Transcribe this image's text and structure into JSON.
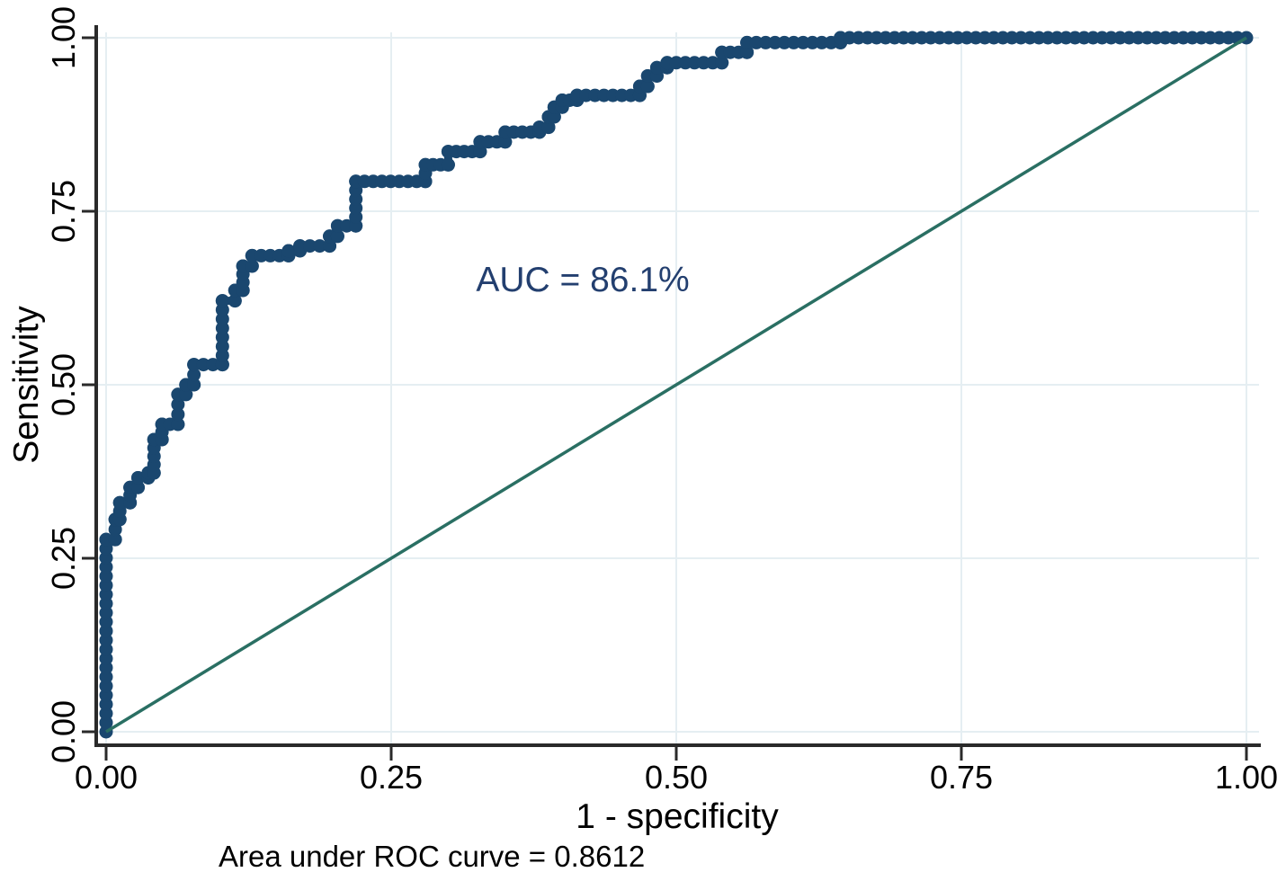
{
  "figure": {
    "kind": "ROC curve plot",
    "background_color": "#ffffff"
  },
  "chart_data": {
    "type": "line",
    "title": "",
    "xlabel": "1 - specificity",
    "ylabel": "Sensitivity",
    "xlim": [
      0,
      1
    ],
    "ylim": [
      0,
      1
    ],
    "x_ticks": [
      0,
      0.25,
      0.5,
      0.75,
      1
    ],
    "y_ticks": [
      0,
      0.25,
      0.5,
      0.75,
      1
    ],
    "x_tick_labels": [
      "0.00",
      "0.25",
      "0.50",
      "0.75",
      "1.00"
    ],
    "y_tick_labels": [
      "0.00",
      "0.25",
      "0.50",
      "0.75",
      "1.00"
    ],
    "grid": true,
    "grid_color": "#e5eef2",
    "axis_color": "#2a2a2a",
    "legend_position": "none",
    "annotation": {
      "text": "AUC = 86.1%",
      "x": 0.418,
      "y": 0.65,
      "color": "#233f6f"
    },
    "note": "Area under ROC curve = 0.8612",
    "auc_value": 0.8612,
    "series": [
      {
        "name": "ROC curve",
        "style": "step-with-markers",
        "color": "#1a476f",
        "points": [
          [
            0.0,
            0.0
          ],
          [
            0.0,
            0.277
          ],
          [
            0.008,
            0.277
          ],
          [
            0.008,
            0.306
          ],
          [
            0.012,
            0.306
          ],
          [
            0.012,
            0.33
          ],
          [
            0.021,
            0.33
          ],
          [
            0.021,
            0.352
          ],
          [
            0.028,
            0.352
          ],
          [
            0.028,
            0.366
          ],
          [
            0.037,
            0.366
          ],
          [
            0.037,
            0.373
          ],
          [
            0.042,
            0.373
          ],
          [
            0.042,
            0.421
          ],
          [
            0.049,
            0.421
          ],
          [
            0.049,
            0.443
          ],
          [
            0.063,
            0.443
          ],
          [
            0.063,
            0.486
          ],
          [
            0.07,
            0.486
          ],
          [
            0.07,
            0.5
          ],
          [
            0.077,
            0.5
          ],
          [
            0.077,
            0.529
          ],
          [
            0.102,
            0.529
          ],
          [
            0.102,
            0.621
          ],
          [
            0.113,
            0.621
          ],
          [
            0.113,
            0.636
          ],
          [
            0.12,
            0.636
          ],
          [
            0.12,
            0.671
          ],
          [
            0.128,
            0.671
          ],
          [
            0.128,
            0.686
          ],
          [
            0.16,
            0.686
          ],
          [
            0.16,
            0.693
          ],
          [
            0.17,
            0.693
          ],
          [
            0.17,
            0.7
          ],
          [
            0.196,
            0.7
          ],
          [
            0.196,
            0.714
          ],
          [
            0.203,
            0.714
          ],
          [
            0.203,
            0.729
          ],
          [
            0.219,
            0.729
          ],
          [
            0.219,
            0.793
          ],
          [
            0.28,
            0.793
          ],
          [
            0.28,
            0.817
          ],
          [
            0.3,
            0.817
          ],
          [
            0.3,
            0.836
          ],
          [
            0.328,
            0.836
          ],
          [
            0.328,
            0.85
          ],
          [
            0.35,
            0.85
          ],
          [
            0.35,
            0.864
          ],
          [
            0.38,
            0.864
          ],
          [
            0.38,
            0.871
          ],
          [
            0.388,
            0.871
          ],
          [
            0.388,
            0.886
          ],
          [
            0.393,
            0.886
          ],
          [
            0.393,
            0.9
          ],
          [
            0.4,
            0.9
          ],
          [
            0.4,
            0.91
          ],
          [
            0.413,
            0.91
          ],
          [
            0.413,
            0.917
          ],
          [
            0.468,
            0.917
          ],
          [
            0.468,
            0.93
          ],
          [
            0.475,
            0.93
          ],
          [
            0.475,
            0.945
          ],
          [
            0.483,
            0.945
          ],
          [
            0.483,
            0.957
          ],
          [
            0.492,
            0.957
          ],
          [
            0.492,
            0.964
          ],
          [
            0.54,
            0.964
          ],
          [
            0.54,
            0.979
          ],
          [
            0.562,
            0.979
          ],
          [
            0.562,
            0.993
          ],
          [
            0.644,
            0.993
          ],
          [
            0.644,
            1.0
          ],
          [
            1.0,
            1.0
          ]
        ]
      },
      {
        "name": "reference diagonal",
        "style": "line",
        "color": "#2a6f63",
        "points": [
          [
            0,
            0
          ],
          [
            1,
            1
          ]
        ]
      }
    ]
  }
}
